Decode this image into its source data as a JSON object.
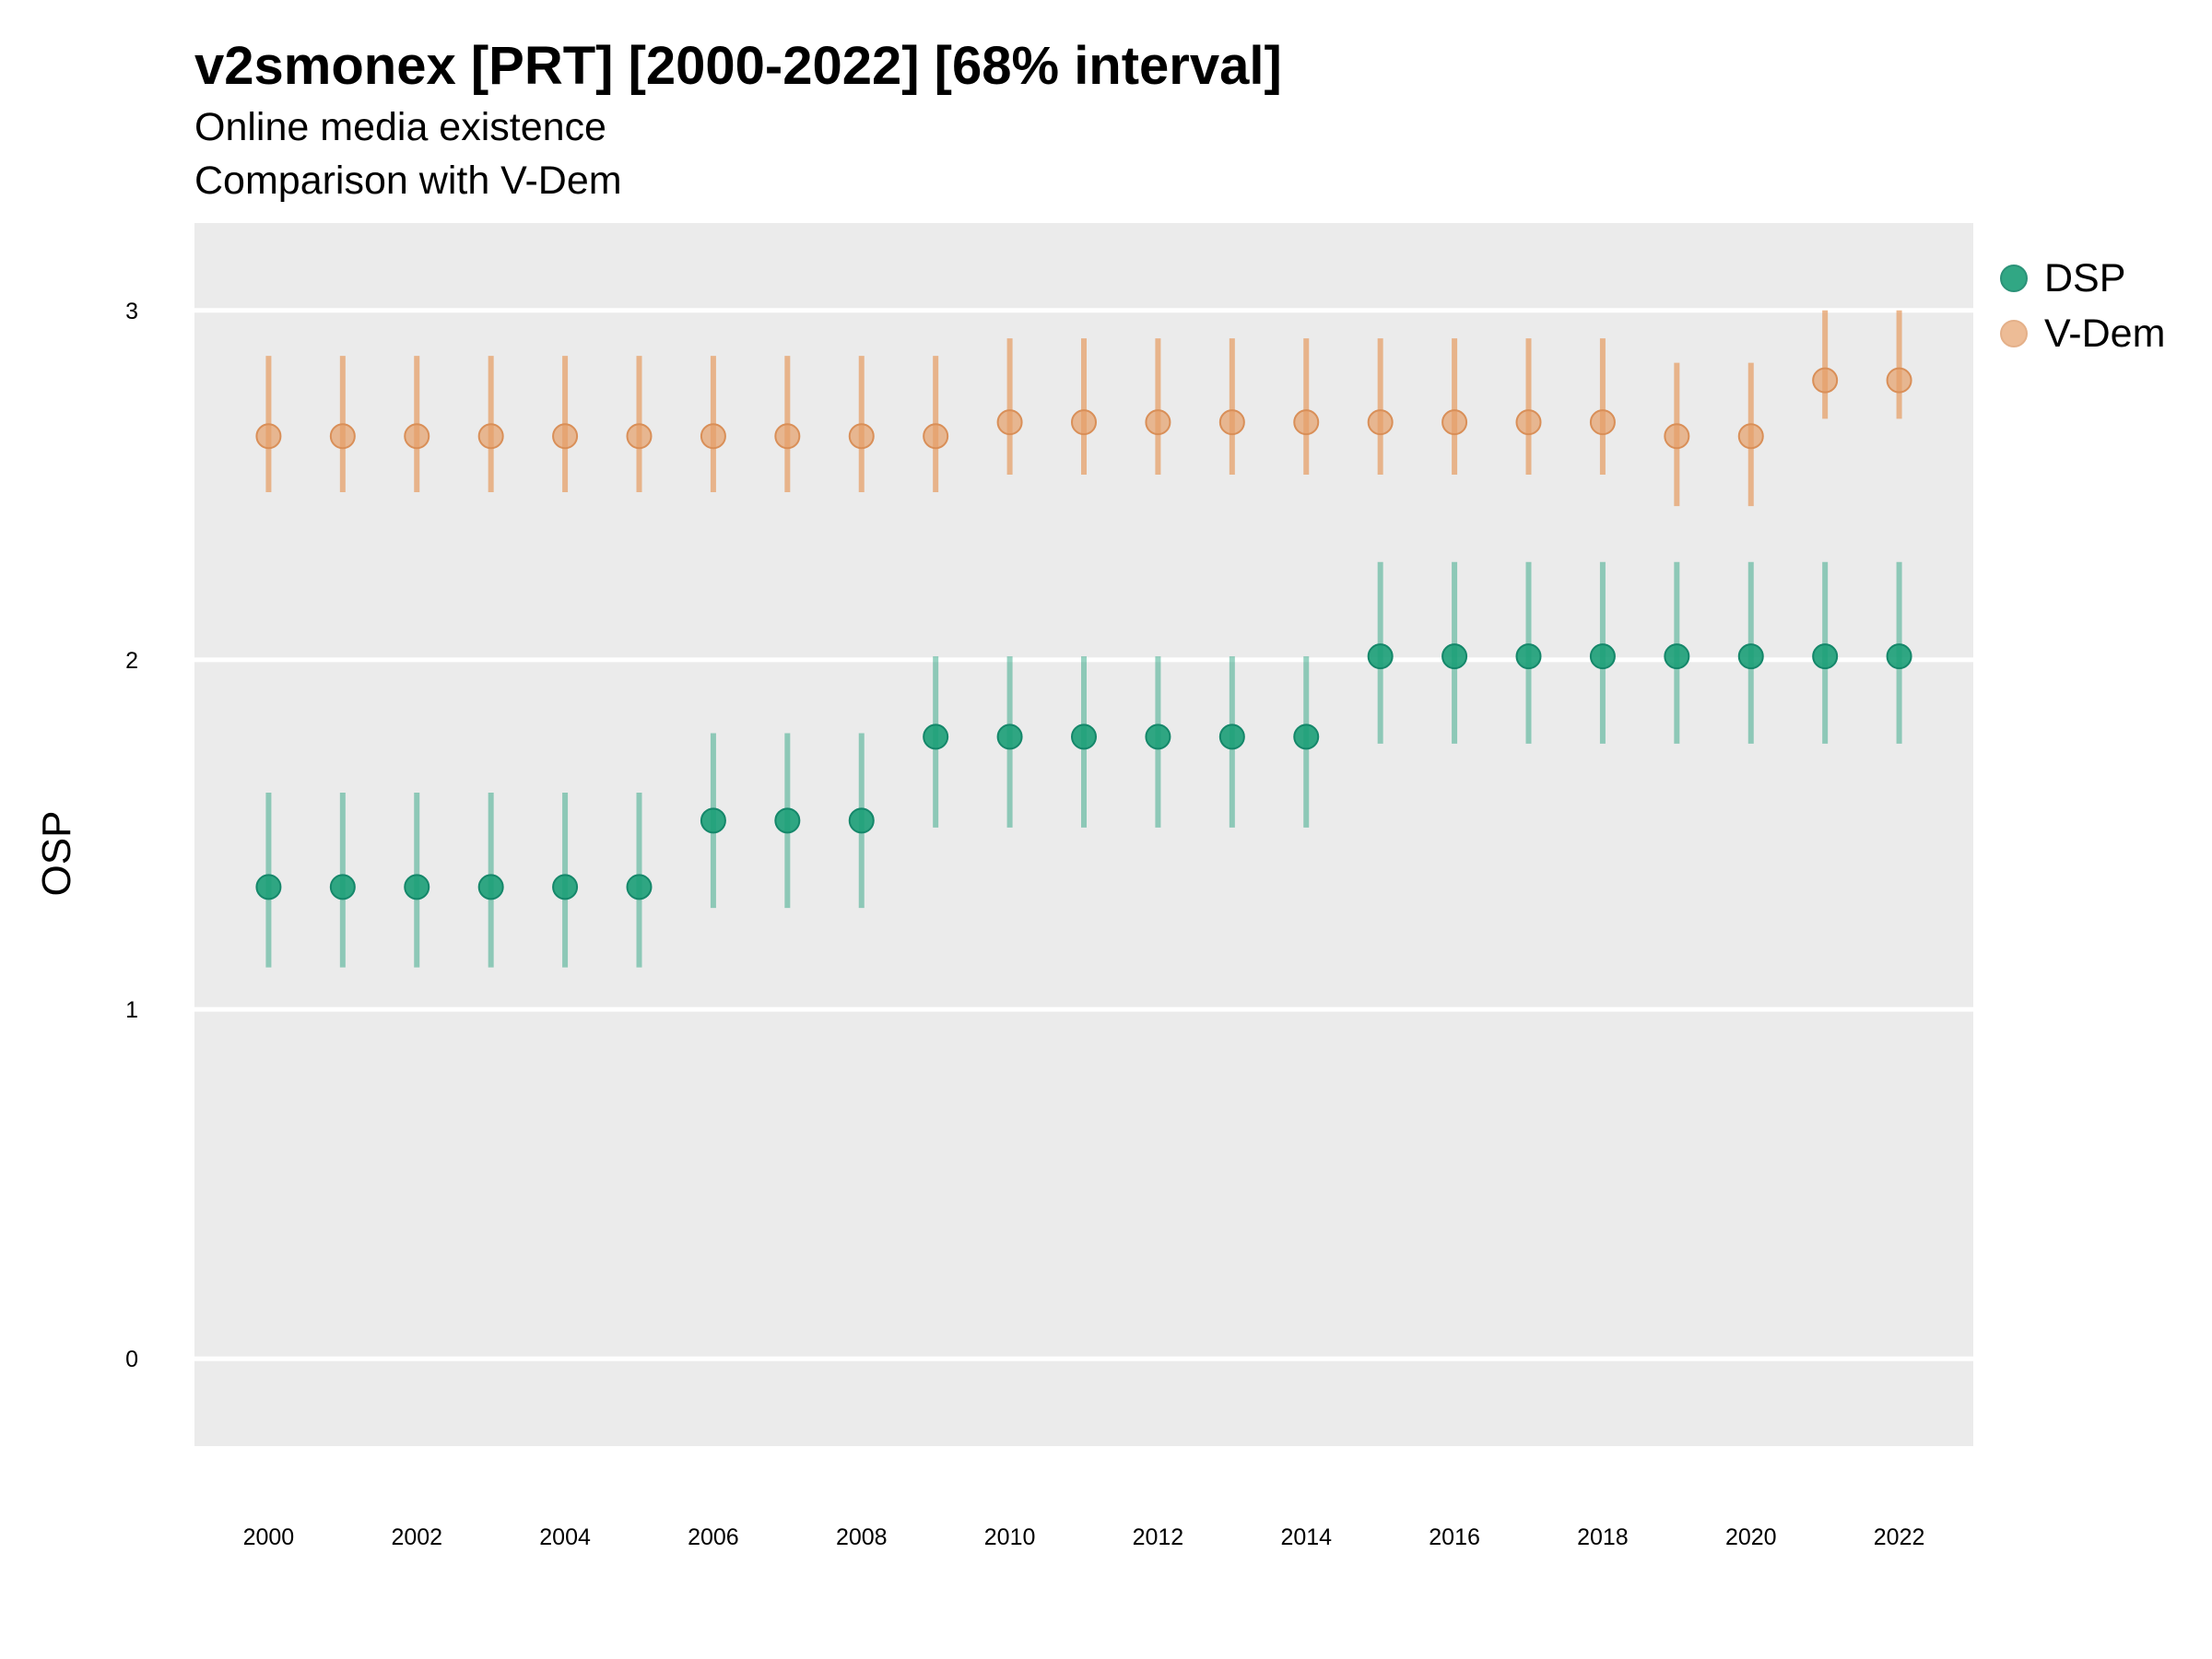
{
  "chart_data": {
    "type": "scatter",
    "title": "v2smonex [PRT] [2000-2022] [68% interval]",
    "subtitle": [
      "Online media existence",
      "Comparison with V-Dem"
    ],
    "xlabel": "",
    "ylabel": "OSP",
    "xlim": [
      1999,
      2023
    ],
    "ylim": [
      -0.25,
      3.25
    ],
    "x_ticks": [
      2000,
      2002,
      2004,
      2006,
      2008,
      2010,
      2012,
      2014,
      2016,
      2018,
      2020,
      2022
    ],
    "y_ticks": [
      0,
      1,
      2,
      3
    ],
    "grid": true,
    "legend_position": "right",
    "x": [
      2000,
      2001,
      2002,
      2003,
      2004,
      2005,
      2006,
      2007,
      2008,
      2009,
      2010,
      2011,
      2012,
      2013,
      2014,
      2015,
      2016,
      2017,
      2018,
      2019,
      2020,
      2021,
      2022
    ],
    "series": [
      {
        "name": "DSP",
        "color": "#1b9e77",
        "values": [
          1.35,
          1.35,
          1.35,
          1.35,
          1.35,
          1.35,
          1.54,
          1.54,
          1.54,
          1.78,
          1.78,
          1.78,
          1.78,
          1.78,
          1.78,
          2.01,
          2.01,
          2.01,
          2.01,
          2.01,
          2.01,
          2.01,
          2.01
        ],
        "lower": [
          1.12,
          1.12,
          1.12,
          1.12,
          1.12,
          1.12,
          1.29,
          1.29,
          1.29,
          1.52,
          1.52,
          1.52,
          1.52,
          1.52,
          1.52,
          1.76,
          1.76,
          1.76,
          1.76,
          1.76,
          1.76,
          1.76,
          1.76
        ],
        "upper": [
          1.62,
          1.62,
          1.62,
          1.62,
          1.62,
          1.62,
          1.79,
          1.79,
          1.79,
          2.01,
          2.01,
          2.01,
          2.01,
          2.01,
          2.01,
          2.28,
          2.28,
          2.28,
          2.28,
          2.28,
          2.28,
          2.28,
          2.28
        ]
      },
      {
        "name": "V-Dem",
        "color": "#e6a06a",
        "values": [
          2.64,
          2.64,
          2.64,
          2.64,
          2.64,
          2.64,
          2.64,
          2.64,
          2.64,
          2.64,
          2.68,
          2.68,
          2.68,
          2.68,
          2.68,
          2.68,
          2.68,
          2.68,
          2.68,
          2.64,
          2.64,
          2.8,
          2.8
        ],
        "lower": [
          2.48,
          2.48,
          2.48,
          2.48,
          2.48,
          2.48,
          2.48,
          2.48,
          2.48,
          2.48,
          2.53,
          2.53,
          2.53,
          2.53,
          2.53,
          2.53,
          2.53,
          2.53,
          2.53,
          2.44,
          2.44,
          2.69,
          2.69
        ],
        "upper": [
          2.87,
          2.87,
          2.87,
          2.87,
          2.87,
          2.87,
          2.87,
          2.87,
          2.87,
          2.87,
          2.92,
          2.92,
          2.92,
          2.92,
          2.92,
          2.92,
          2.92,
          2.92,
          2.92,
          2.85,
          2.85,
          3.0,
          3.0
        ]
      }
    ]
  }
}
